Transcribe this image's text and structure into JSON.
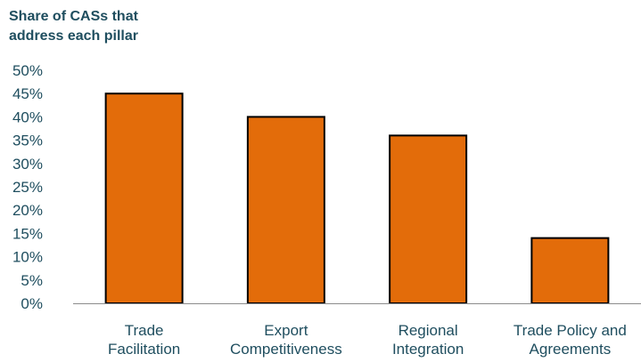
{
  "chart_data": {
    "type": "bar",
    "title_lines": [
      "Share of CASs that",
      "address each pillar"
    ],
    "categories": [
      [
        "Trade",
        "Facilitation"
      ],
      [
        "Export",
        "Competitiveness"
      ],
      [
        "Regional",
        "Integration"
      ],
      [
        "Trade Policy and",
        "Agreements"
      ]
    ],
    "values": [
      45,
      40,
      36,
      14
    ],
    "ylim": [
      0,
      50
    ],
    "yticks": [
      0,
      5,
      10,
      15,
      20,
      25,
      30,
      35,
      40,
      45,
      50
    ],
    "ytick_suffix": "%",
    "xlabel": "",
    "ylabel": "",
    "grid": false,
    "legend": "none",
    "bar_color": "#e36c0a",
    "bar_edge_color": "#000000",
    "text_color": "#1f4e5f",
    "axis_color": "#8c8c8c"
  }
}
